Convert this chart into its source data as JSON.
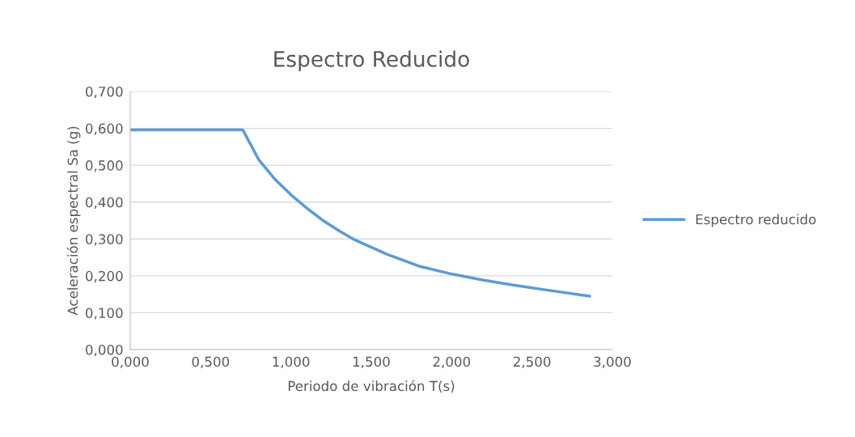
{
  "chart_data": {
    "type": "line",
    "title": "Espectro Reducido",
    "xlabel": "Periodo de vibración T(s)",
    "ylabel": "Aceleración espectral Sa (g)",
    "x": [
      0,
      0.1,
      0.2,
      0.3,
      0.4,
      0.5,
      0.6,
      0.7,
      0.8,
      0.9,
      1.0,
      1.1,
      1.2,
      1.3,
      1.4,
      1.6,
      1.8,
      2.0,
      2.2,
      2.4,
      2.6,
      2.86
    ],
    "series": [
      {
        "name": "Espectro reducido",
        "color": "#5b9bd5",
        "values": [
          0.596,
          0.596,
          0.596,
          0.596,
          0.596,
          0.596,
          0.596,
          0.596,
          0.515,
          0.462,
          0.42,
          0.383,
          0.35,
          0.322,
          0.297,
          0.258,
          0.226,
          0.205,
          0.188,
          0.174,
          0.161,
          0.145
        ]
      }
    ],
    "xlim": [
      0,
      3.0
    ],
    "ylim": [
      0,
      0.7
    ],
    "xticks": [
      {
        "value": 0,
        "label": "0,000"
      },
      {
        "value": 0.5,
        "label": "0,500"
      },
      {
        "value": 1.0,
        "label": "1,000"
      },
      {
        "value": 1.5,
        "label": "1,500"
      },
      {
        "value": 2.0,
        "label": "2,000"
      },
      {
        "value": 2.5,
        "label": "2,500"
      },
      {
        "value": 3.0,
        "label": "3,000"
      }
    ],
    "yticks": [
      {
        "value": 0,
        "label": "0,000"
      },
      {
        "value": 0.1,
        "label": "0,100"
      },
      {
        "value": 0.2,
        "label": "0,200"
      },
      {
        "value": 0.3,
        "label": "0,300"
      },
      {
        "value": 0.4,
        "label": "0,400"
      },
      {
        "value": 0.5,
        "label": "0,500"
      },
      {
        "value": 0.6,
        "label": "0,600"
      },
      {
        "value": 0.7,
        "label": "0,700"
      }
    ],
    "grid": "y",
    "legend": "right",
    "marker": "none",
    "line_style": "solid"
  }
}
